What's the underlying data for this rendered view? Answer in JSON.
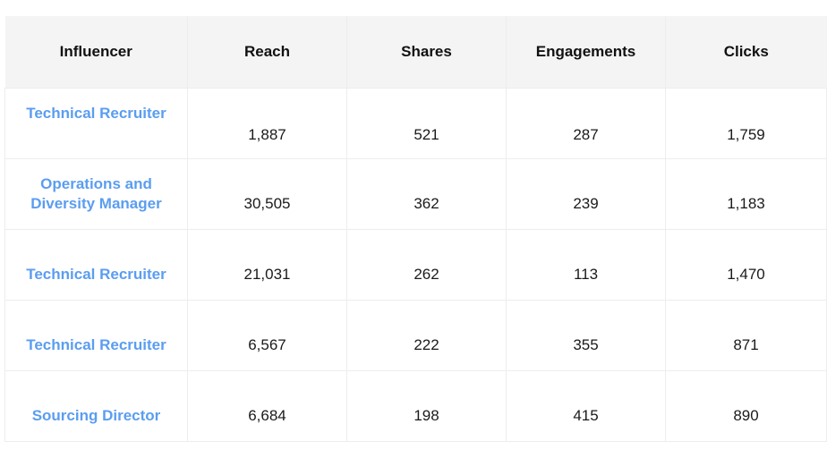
{
  "colors": {
    "header_bg": "#f4f4f4",
    "influencer_link": "#5b9df0",
    "border": "#ededed",
    "text": "#1a1a1a"
  },
  "table": {
    "headers": [
      "Influencer",
      "Reach",
      "Shares",
      "Engagements",
      "Clicks"
    ],
    "rows": [
      {
        "influencer": "Technical Recruiter",
        "reach": "1,887",
        "shares": "521",
        "engagements": "287",
        "clicks": "1,759"
      },
      {
        "influencer": "Operations and Diversity Manager",
        "reach": "30,505",
        "shares": "362",
        "engagements": "239",
        "clicks": "1,183"
      },
      {
        "influencer": "Technical Recruiter",
        "reach": "21,031",
        "shares": "262",
        "engagements": "113",
        "clicks": "1,470"
      },
      {
        "influencer": "Technical Recruiter",
        "reach": "6,567",
        "shares": "222",
        "engagements": "355",
        "clicks": "871"
      },
      {
        "influencer": "Sourcing Director",
        "reach": "6,684",
        "shares": "198",
        "engagements": "415",
        "clicks": "890"
      }
    ]
  }
}
